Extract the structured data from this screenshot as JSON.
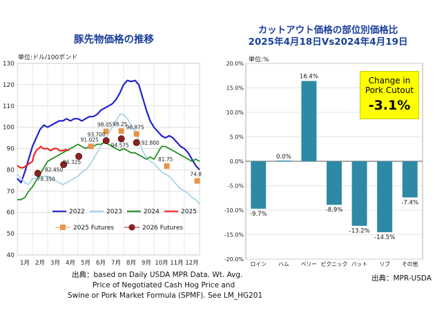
{
  "left_chart": {
    "title": "豚先物価格の推移",
    "unit": "単位:ドル/100ポンド",
    "source_lines": [
      "出典：based on Daily USDA MPR Data. Wt. Avg.",
      "Price of Negotiated Cash Hog Price and",
      "Swine or Pork Market Formula (SPMF). See LM_HG201"
    ]
  },
  "right_chart": {
    "title_line1": "カットアウト価格の部位別価格比",
    "title_line2": "2025年4月18日Vs2024年4月19日",
    "unit": "単位:%",
    "source": "出典：MPR-USDA",
    "callout": {
      "line1": "Change in",
      "line2": "Pork Cutout",
      "value": "-3.1%"
    }
  },
  "chart_data": [
    {
      "type": "line",
      "title": "豚先物価格の推移",
      "ylabel": "単位:ドル/100ポンド",
      "ylim": [
        40,
        130
      ],
      "yticks": [
        40,
        50,
        60,
        70,
        80,
        90,
        100,
        110,
        120,
        130
      ],
      "xlim": [
        0,
        12
      ],
      "categories": [
        "1月",
        "2月",
        "3月",
        "4月",
        "5月",
        "6月",
        "7月",
        "8月",
        "9月",
        "10月",
        "11月",
        "12月"
      ],
      "grid": true,
      "legend_position": "bottom",
      "series": [
        {
          "name": "2022",
          "color": "#1f1fcc",
          "width": 2.2,
          "points": [
            [
              0,
              76
            ],
            [
              0.25,
              74
            ],
            [
              0.5,
              79
            ],
            [
              0.75,
              85
            ],
            [
              1,
              91
            ],
            [
              1.25,
              95
            ],
            [
              1.5,
              99
            ],
            [
              1.75,
              101
            ],
            [
              2,
              100
            ],
            [
              2.25,
              101
            ],
            [
              2.5,
              102
            ],
            [
              2.75,
              103
            ],
            [
              3,
              103
            ],
            [
              3.25,
              104
            ],
            [
              3.5,
              103
            ],
            [
              3.75,
              104
            ],
            [
              4,
              104
            ],
            [
              4.25,
              103
            ],
            [
              4.5,
              104
            ],
            [
              4.75,
              105
            ],
            [
              5,
              105
            ],
            [
              5.25,
              106
            ],
            [
              5.5,
              108
            ],
            [
              5.75,
              109
            ],
            [
              6,
              110
            ],
            [
              6.25,
              111
            ],
            [
              6.5,
              113
            ],
            [
              6.75,
              116
            ],
            [
              7,
              120
            ],
            [
              7.25,
              122
            ],
            [
              7.5,
              121.5
            ],
            [
              7.75,
              122
            ],
            [
              8,
              120
            ],
            [
              8.25,
              114
            ],
            [
              8.5,
              108
            ],
            [
              8.75,
              103
            ],
            [
              9,
              100
            ],
            [
              9.25,
              98
            ],
            [
              9.5,
              96
            ],
            [
              9.75,
              95
            ],
            [
              10,
              96
            ],
            [
              10.25,
              95
            ],
            [
              10.5,
              93
            ],
            [
              10.75,
              91
            ],
            [
              11,
              90
            ],
            [
              11.25,
              88
            ],
            [
              11.5,
              85
            ],
            [
              11.75,
              82
            ],
            [
              12,
              80
            ]
          ]
        },
        {
          "name": "2023",
          "color": "#9fd0e8",
          "width": 1.6,
          "points": [
            [
              0,
              78
            ],
            [
              0.25,
              76
            ],
            [
              0.5,
              74
            ],
            [
              0.75,
              73
            ],
            [
              1,
              76
            ],
            [
              1.25,
              76
            ],
            [
              1.5,
              77
            ],
            [
              1.75,
              77
            ],
            [
              2,
              77
            ],
            [
              2.25,
              76
            ],
            [
              2.5,
              75
            ],
            [
              2.75,
              74
            ],
            [
              3,
              73
            ],
            [
              3.25,
              74
            ],
            [
              3.5,
              75
            ],
            [
              3.75,
              76
            ],
            [
              4,
              77
            ],
            [
              4.25,
              79
            ],
            [
              4.5,
              80
            ],
            [
              4.75,
              82
            ],
            [
              5,
              85
            ],
            [
              5.25,
              88
            ],
            [
              5.5,
              91
            ],
            [
              5.75,
              94
            ],
            [
              6,
              97
            ],
            [
              6.25,
              100
            ],
            [
              6.5,
              103
            ],
            [
              6.75,
              106
            ],
            [
              7,
              106
            ],
            [
              7.25,
              104
            ],
            [
              7.5,
              101
            ],
            [
              7.75,
              98
            ],
            [
              8,
              94
            ],
            [
              8.25,
              89
            ],
            [
              8.5,
              86
            ],
            [
              8.75,
              84
            ],
            [
              9,
              83
            ],
            [
              9.25,
              81
            ],
            [
              9.5,
              79
            ],
            [
              9.75,
              78
            ],
            [
              10,
              77
            ],
            [
              10.25,
              75
            ],
            [
              10.5,
              73
            ],
            [
              10.75,
              71
            ],
            [
              11,
              70
            ],
            [
              11.25,
              69
            ],
            [
              11.5,
              67
            ],
            [
              11.75,
              66
            ],
            [
              12,
              64
            ]
          ]
        },
        {
          "name": "2024",
          "color": "#1f8a1f",
          "width": 1.8,
          "points": [
            [
              0,
              66
            ],
            [
              0.25,
              66
            ],
            [
              0.5,
              67
            ],
            [
              0.75,
              70
            ],
            [
              1,
              72
            ],
            [
              1.25,
              75
            ],
            [
              1.5,
              78
            ],
            [
              1.75,
              81
            ],
            [
              2,
              84
            ],
            [
              2.25,
              85
            ],
            [
              2.5,
              86
            ],
            [
              2.75,
              87
            ],
            [
              3,
              88
            ],
            [
              3.25,
              89
            ],
            [
              3.5,
              90
            ],
            [
              3.75,
              91
            ],
            [
              4,
              92
            ],
            [
              4.25,
              91
            ],
            [
              4.5,
              90
            ],
            [
              4.75,
              91
            ],
            [
              5,
              91
            ],
            [
              5.25,
              92
            ],
            [
              5.5,
              92
            ],
            [
              5.75,
              93
            ],
            [
              6,
              92
            ],
            [
              6.25,
              91
            ],
            [
              6.5,
              90
            ],
            [
              6.75,
              89
            ],
            [
              7,
              90
            ],
            [
              7.25,
              89
            ],
            [
              7.5,
              88
            ],
            [
              7.75,
              88
            ],
            [
              8,
              87
            ],
            [
              8.25,
              86
            ],
            [
              8.5,
              85
            ],
            [
              8.75,
              86
            ],
            [
              9,
              85
            ],
            [
              9.25,
              88
            ],
            [
              9.5,
              91
            ],
            [
              9.75,
              91
            ],
            [
              10,
              90
            ],
            [
              10.25,
              89
            ],
            [
              10.5,
              88
            ],
            [
              10.75,
              87
            ],
            [
              11,
              86
            ],
            [
              11.25,
              85
            ],
            [
              11.5,
              84
            ],
            [
              11.75,
              85
            ],
            [
              12,
              84
            ]
          ]
        },
        {
          "name": "2025",
          "color": "#ee2222",
          "width": 2.2,
          "points": [
            [
              0,
              82
            ],
            [
              0.2,
              81
            ],
            [
              0.4,
              81
            ],
            [
              0.6,
              82
            ],
            [
              0.8,
              83
            ],
            [
              1,
              84
            ],
            [
              1.1,
              87
            ],
            [
              1.25,
              89
            ],
            [
              1.4,
              90
            ],
            [
              1.55,
              91
            ],
            [
              1.7,
              90
            ],
            [
              1.85,
              90
            ],
            [
              2,
              90
            ],
            [
              2.2,
              89
            ],
            [
              2.4,
              90
            ],
            [
              2.6,
              90
            ],
            [
              2.8,
              89
            ],
            [
              3,
              89
            ],
            [
              3.2,
              89.5
            ],
            [
              3.4,
              89
            ]
          ]
        }
      ],
      "markers": [
        {
          "name": "2025 Futures",
          "shape": "square",
          "color": "#e8944a",
          "points": [
            {
              "x": 4.85,
              "y": 91.025,
              "label": "91.025"
            },
            {
              "x": 5.85,
              "y": 98.05,
              "label": "98.05"
            },
            {
              "x": 6.85,
              "y": 98.25,
              "label": "98.25"
            },
            {
              "x": 7.85,
              "y": 96.875,
              "label": "96.875"
            },
            {
              "x": 9.85,
              "y": 81.75,
              "label": "81.75"
            },
            {
              "x": 11.85,
              "y": 74.8,
              "label": "74.8"
            }
          ]
        },
        {
          "name": "2026 Futures",
          "shape": "circle",
          "color": "#8b2222",
          "points": [
            {
              "x": 1.35,
              "y": 78.35,
              "label": "78.350"
            },
            {
              "x": 3.05,
              "y": 82.45,
              "label": "82.450"
            },
            {
              "x": 4.05,
              "y": 86.325,
              "label": "86.325"
            },
            {
              "x": 5.85,
              "y": 93.7,
              "label": "93.700"
            },
            {
              "x": 6.85,
              "y": 94.575,
              "label": "94.575"
            },
            {
              "x": 7.85,
              "y": 92.8,
              "label": "92.800"
            }
          ]
        }
      ]
    },
    {
      "type": "bar",
      "title": "カットアウト価格の部位別価格比 2025年4月18日Vs2024年4月19日",
      "ylabel": "単位:%",
      "ylim": [
        -20,
        20
      ],
      "yticks": [
        "-20.0%",
        "-15.0%",
        "-10.0%",
        "-5.0%",
        "0.0%",
        "5.0%",
        "10.0%",
        "15.0%",
        "20.0%"
      ],
      "grid": true,
      "color": "#2e8aa4",
      "categories": [
        "ロイン",
        "ハム",
        "ベリー",
        "ピクニック",
        "バット",
        "リブ",
        "その他"
      ],
      "values": [
        -9.7,
        0.0,
        16.4,
        -8.9,
        -13.2,
        -14.5,
        -7.4
      ],
      "data_labels": [
        "-9.7%",
        "0.0%",
        "16.4%",
        "-8.9%",
        "-13.2%",
        "-14.5%",
        "-7.4%"
      ]
    }
  ]
}
